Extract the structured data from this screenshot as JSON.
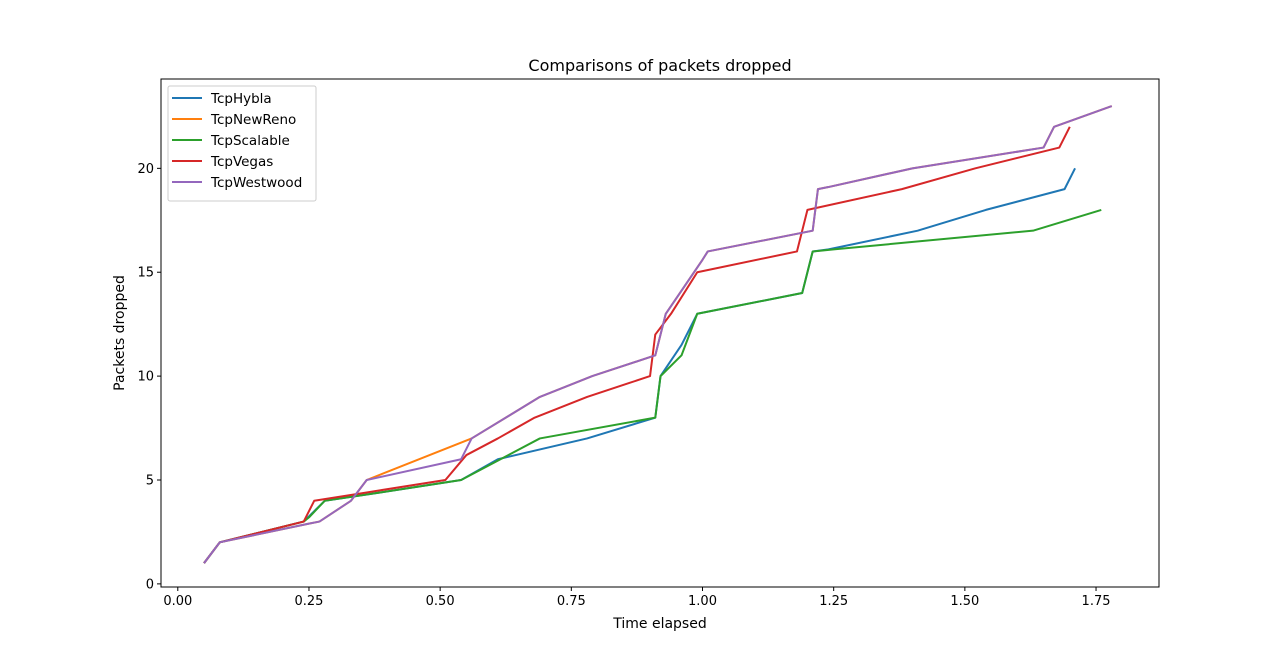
{
  "chart_data": {
    "type": "line",
    "title": "Comparisons of packets dropped",
    "xlabel": "Time elapsed",
    "ylabel": "Packets dropped",
    "xlim": [
      -0.032,
      1.87
    ],
    "ylim": [
      -0.15,
      24.3
    ],
    "xticks": [
      0.0,
      0.25,
      0.5,
      0.75,
      1.0,
      1.25,
      1.5,
      1.75
    ],
    "xtick_labels": [
      "0.00",
      "0.25",
      "0.50",
      "0.75",
      "1.00",
      "1.25",
      "1.50",
      "1.75"
    ],
    "yticks": [
      0,
      5,
      10,
      15,
      20
    ],
    "ytick_labels": [
      "0",
      "5",
      "10",
      "15",
      "20"
    ],
    "grid": false,
    "legend_position": "top-left",
    "series": [
      {
        "name": "TcpHybla",
        "color": "#1f77b4",
        "x": [
          0.05,
          0.08,
          0.24,
          0.26,
          0.28,
          0.36,
          0.54,
          0.61,
          0.78,
          0.91,
          0.92,
          0.96,
          0.99,
          1.19,
          1.2,
          1.21,
          1.24,
          1.41,
          1.54,
          1.69,
          1.71
        ],
        "y": [
          1,
          2,
          3,
          3.5,
          4,
          4.3,
          5,
          6,
          7,
          8,
          10,
          11.5,
          13,
          14,
          15,
          16,
          16.1,
          17,
          18,
          19,
          20
        ]
      },
      {
        "name": "TcpNewReno",
        "color": "#ff7f0e",
        "x": [
          0.05,
          0.08,
          0.25,
          0.27,
          0.33,
          0.36,
          0.56,
          0.69,
          0.79,
          0.91,
          0.93,
          1.0,
          1.01,
          1.21,
          1.22,
          1.24,
          1.4,
          1.65,
          1.67,
          1.78
        ],
        "y": [
          1,
          2,
          2.9,
          3,
          4,
          5,
          7,
          9,
          10,
          11,
          13,
          15.6,
          16,
          17,
          19,
          19.1,
          20,
          21,
          22,
          23
        ]
      },
      {
        "name": "TcpScalable",
        "color": "#2ca02c",
        "x": [
          0.05,
          0.08,
          0.24,
          0.25,
          0.28,
          0.36,
          0.54,
          0.69,
          0.91,
          0.92,
          0.96,
          0.99,
          1.19,
          1.2,
          1.21,
          1.25,
          1.63,
          1.76
        ],
        "y": [
          1,
          2,
          3,
          3.2,
          4,
          4.3,
          5,
          7,
          8,
          10,
          11,
          13,
          14,
          15,
          16,
          16.1,
          17,
          18
        ]
      },
      {
        "name": "TcpVegas",
        "color": "#d62728",
        "x": [
          0.05,
          0.08,
          0.24,
          0.26,
          0.36,
          0.51,
          0.55,
          0.61,
          0.68,
          0.78,
          0.9,
          0.91,
          0.94,
          0.99,
          1.18,
          1.2,
          1.38,
          1.52,
          1.68,
          1.7
        ],
        "y": [
          1,
          2,
          3,
          4,
          4.4,
          5,
          6.2,
          7,
          8,
          9,
          10,
          12,
          13,
          15,
          16,
          18,
          19,
          20,
          21,
          22
        ]
      },
      {
        "name": "TcpWestwood",
        "color": "#9467bd",
        "x": [
          0.05,
          0.08,
          0.25,
          0.27,
          0.33,
          0.36,
          0.54,
          0.56,
          0.69,
          0.79,
          0.91,
          0.93,
          1.0,
          1.01,
          1.21,
          1.22,
          1.24,
          1.4,
          1.65,
          1.67,
          1.78
        ],
        "y": [
          1,
          2,
          2.9,
          3,
          4,
          5,
          6,
          7,
          9,
          10,
          11,
          13,
          15.6,
          16,
          17,
          19,
          19.1,
          20,
          21,
          22,
          23
        ]
      }
    ]
  }
}
